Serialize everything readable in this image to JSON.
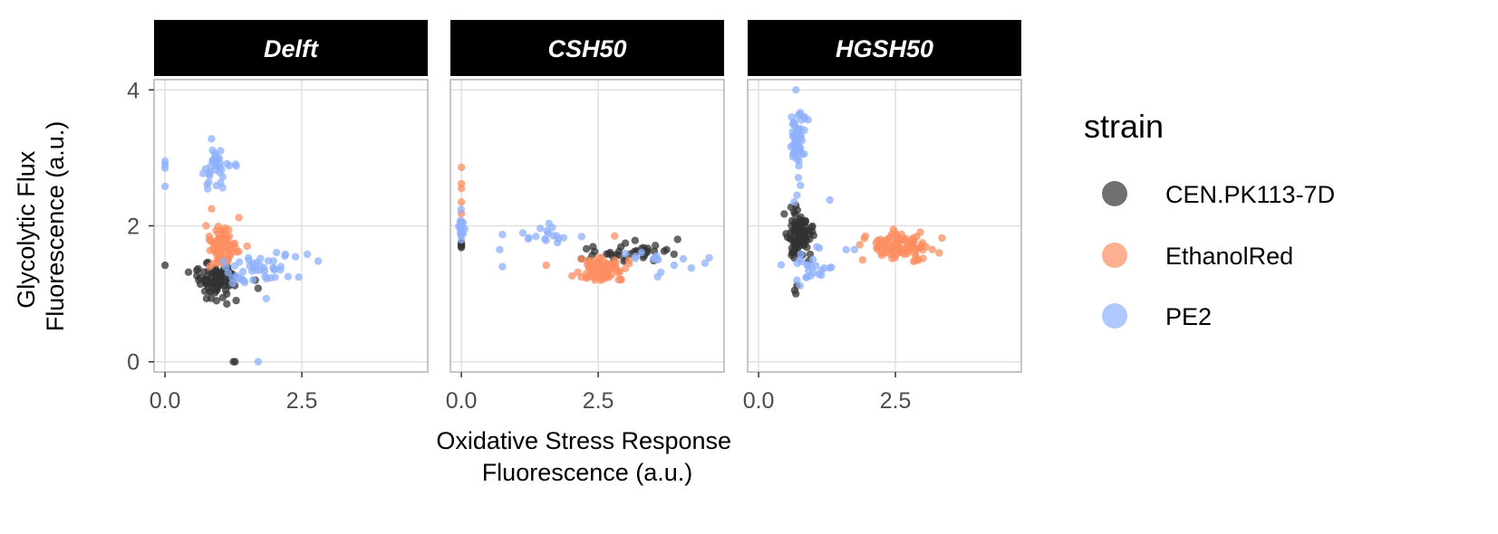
{
  "chart_data": {
    "type": "scatter",
    "xlabel_lines": [
      "Oxidative Stress Response",
      "Fluorescence (a.u.)"
    ],
    "ylabel_lines": [
      "Glycolytic Flux",
      "Fluorescence (a.u.)"
    ],
    "xlim": [
      -0.2,
      4.8
    ],
    "ylim": [
      -0.15,
      4.15
    ],
    "x_ticks": [
      0.0,
      2.5
    ],
    "x_tick_labels": [
      "0.0",
      "2.5"
    ],
    "y_ticks": [
      0,
      2,
      4
    ],
    "y_tick_labels": [
      "0",
      "2",
      "4"
    ],
    "grid": true,
    "legend": {
      "title": "strain",
      "position": "right",
      "entries": [
        "CEN.PK113-7D",
        "EthanolRed",
        "PE2"
      ]
    },
    "colors": {
      "CEN.PK113-7D": "#333333",
      "EthanolRed": "#fc8d62",
      "PE2": "#8db0fe",
      "strip_background": "#000000",
      "strip_text": "#ffffff",
      "panel_border": "#b3b3b3",
      "grid": "#e0e0e0"
    },
    "facets": [
      {
        "name": "Delft",
        "series": [
          {
            "name": "CEN.PK113-7D",
            "clusters": [
              {
                "cx": 0.9,
                "cy": 1.2,
                "sx": 0.2,
                "sy": 0.13,
                "n": 85
              }
            ],
            "points": [
              [
                0.0,
                1.42
              ],
              [
                1.25,
                0.0
              ],
              [
                1.28,
                0.0
              ],
              [
                1.7,
                1.08
              ],
              [
                1.65,
                1.2
              ],
              [
                1.3,
                0.9
              ]
            ]
          },
          {
            "name": "EthanolRed",
            "clusters": [
              {
                "cx": 1.05,
                "cy": 1.7,
                "sx": 0.12,
                "sy": 0.17,
                "n": 75
              }
            ],
            "points": [
              [
                0.85,
                2.25
              ],
              [
                0.75,
                2.0
              ],
              [
                1.35,
                2.12
              ],
              [
                1.5,
                1.7
              ]
            ]
          },
          {
            "name": "PE2",
            "clusters": [
              {
                "cx": 0.95,
                "cy": 2.85,
                "sx": 0.13,
                "sy": 0.18,
                "n": 32
              },
              {
                "cx": 1.75,
                "cy": 1.35,
                "sx": 0.3,
                "sy": 0.12,
                "n": 45
              }
            ],
            "points": [
              [
                0.0,
                2.95
              ],
              [
                0.0,
                2.9
              ],
              [
                0.0,
                2.85
              ],
              [
                0.0,
                2.58
              ],
              [
                0.85,
                3.28
              ],
              [
                1.3,
                2.88
              ],
              [
                2.6,
                1.58
              ],
              [
                1.7,
                0.0
              ],
              [
                1.85,
                0.93
              ],
              [
                2.2,
                1.58
              ]
            ]
          }
        ]
      },
      {
        "name": "CSH50",
        "series": [
          {
            "name": "CEN.PK113-7D",
            "clusters": [
              {
                "cx": 3.0,
                "cy": 1.6,
                "sx": 0.45,
                "sy": 0.08,
                "n": 35
              }
            ],
            "points": [
              [
                0.0,
                1.7
              ],
              [
                0.0,
                1.75
              ],
              [
                0.0,
                1.72
              ],
              [
                0.0,
                1.68
              ],
              [
                3.95,
                1.8
              ],
              [
                3.75,
                1.65
              ]
            ]
          },
          {
            "name": "EthanolRed",
            "clusters": [
              {
                "cx": 2.6,
                "cy": 1.35,
                "sx": 0.22,
                "sy": 0.1,
                "n": 90
              }
            ],
            "points": [
              [
                0.0,
                2.86
              ],
              [
                0.0,
                2.62
              ],
              [
                0.0,
                2.55
              ],
              [
                0.0,
                2.35
              ],
              [
                0.0,
                2.18
              ],
              [
                0.0,
                2.05
              ],
              [
                0.0,
                1.95
              ],
              [
                1.55,
                1.42
              ],
              [
                2.8,
                1.85
              ]
            ]
          },
          {
            "name": "PE2",
            "clusters": [
              {
                "cx": 0.0,
                "cy": 1.95,
                "sx": 0.02,
                "sy": 0.1,
                "n": 25
              },
              {
                "cx": 1.6,
                "cy": 1.85,
                "sx": 0.35,
                "sy": 0.12,
                "n": 18
              },
              {
                "cx": 3.6,
                "cy": 1.5,
                "sx": 0.4,
                "sy": 0.1,
                "n": 14
              }
            ],
            "points": [
              [
                0.75,
                1.4
              ],
              [
                0.7,
                1.65
              ],
              [
                4.45,
                1.45
              ],
              [
                4.2,
                1.38
              ]
            ]
          }
        ]
      },
      {
        "name": "HGSH50",
        "series": [
          {
            "name": "CEN.PK113-7D",
            "clusters": [
              {
                "cx": 0.75,
                "cy": 1.85,
                "sx": 0.12,
                "sy": 0.18,
                "n": 95
              }
            ],
            "points": [
              [
                0.66,
                1.05
              ],
              [
                0.68,
                1.0
              ],
              [
                0.7,
                1.12
              ],
              [
                0.65,
                2.2
              ],
              [
                0.68,
                2.3
              ]
            ]
          },
          {
            "name": "EthanolRed",
            "clusters": [
              {
                "cx": 2.55,
                "cy": 1.7,
                "sx": 0.28,
                "sy": 0.1,
                "n": 90
              }
            ],
            "points": [
              [
                1.9,
                1.5
              ],
              [
                1.95,
                1.85
              ],
              [
                3.35,
                1.82
              ],
              [
                3.3,
                1.6
              ]
            ]
          },
          {
            "name": "PE2",
            "clusters": [
              {
                "cx": 0.7,
                "cy": 3.25,
                "sx": 0.07,
                "sy": 0.2,
                "n": 55
              },
              {
                "cx": 0.9,
                "cy": 1.45,
                "sx": 0.18,
                "sy": 0.15,
                "n": 22
              }
            ],
            "points": [
              [
                0.68,
                4.0
              ],
              [
                0.72,
                3.62
              ],
              [
                0.85,
                3.58
              ],
              [
                0.7,
                2.45
              ],
              [
                0.65,
                2.35
              ],
              [
                0.7,
                1.2
              ],
              [
                1.3,
                2.38
              ],
              [
                1.6,
                1.65
              ],
              [
                1.75,
                1.65
              ],
              [
                1.2,
                1.38
              ],
              [
                1.3,
                1.38
              ]
            ]
          }
        ]
      }
    ]
  }
}
